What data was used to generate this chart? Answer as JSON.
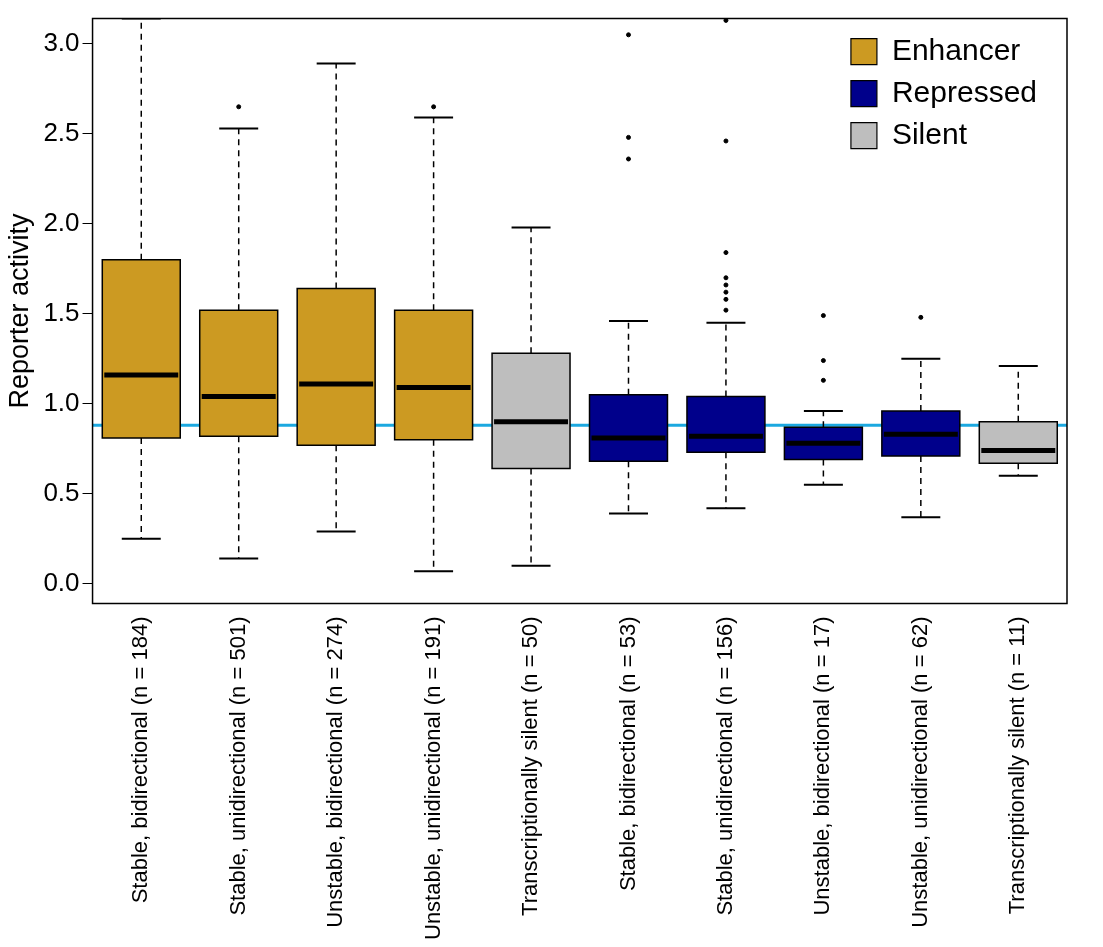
{
  "chart_data": {
    "type": "box",
    "ylabel": "Reporter activity",
    "categories": [
      "Stable, bidirectional (n = 184)",
      "Stable, unidirectional (n = 501)",
      "Unstable, bidirectional (n = 274)",
      "Unstable, unidirectional (n = 191)",
      "Transcriptionally silent (n = 50)",
      "Stable, bidirectional (n = 53)",
      "Stable, unidirectional (n = 156)",
      "Unstable, bidirectional (n = 17)",
      "Unstable, unidirectional (n = 62)",
      "Transcriptionally silent (n = 11)"
    ],
    "series": [
      {
        "name": "Enhancer",
        "color": "#cc9a22",
        "boxes": [
          {
            "low": 0.25,
            "q1": 0.81,
            "median": 1.16,
            "q3": 1.8,
            "high": 3.14
          },
          {
            "low": 0.14,
            "q1": 0.82,
            "median": 1.04,
            "q3": 1.52,
            "high": 2.53,
            "outliers": [
              2.65
            ]
          },
          {
            "low": 0.29,
            "q1": 0.77,
            "median": 1.11,
            "q3": 1.64,
            "high": 2.89
          },
          {
            "low": 0.07,
            "q1": 0.8,
            "median": 1.09,
            "q3": 1.52,
            "high": 2.59,
            "outliers": [
              2.65
            ]
          },
          null,
          null,
          null,
          null,
          null,
          null
        ]
      },
      {
        "name": "Repressed",
        "color": "#00008b",
        "boxes": [
          null,
          null,
          null,
          null,
          null,
          {
            "low": 0.39,
            "q1": 0.68,
            "median": 0.81,
            "q3": 1.05,
            "high": 1.46,
            "outliers": [
              2.36,
              2.48,
              3.05
            ]
          },
          {
            "low": 0.42,
            "q1": 0.73,
            "median": 0.82,
            "q3": 1.04,
            "high": 1.45,
            "outliers": [
              1.52,
              1.58,
              1.62,
              1.66,
              1.7,
              1.84,
              2.46,
              3.13
            ]
          },
          {
            "low": 0.55,
            "q1": 0.69,
            "median": 0.78,
            "q3": 0.87,
            "high": 0.96,
            "outliers": [
              1.13,
              1.24,
              1.49
            ]
          },
          {
            "low": 0.37,
            "q1": 0.71,
            "median": 0.83,
            "q3": 0.96,
            "high": 1.25,
            "outliers": [
              1.48
            ]
          },
          null
        ]
      },
      {
        "name": "Silent",
        "color": "#bebebe",
        "boxes": [
          null,
          null,
          null,
          null,
          {
            "low": 0.1,
            "q1": 0.64,
            "median": 0.9,
            "q3": 1.28,
            "high": 1.98
          },
          null,
          null,
          null,
          null,
          {
            "low": 0.6,
            "q1": 0.67,
            "median": 0.74,
            "q3": 0.9,
            "high": 1.21
          }
        ]
      }
    ],
    "ylim": [
      -0.11,
      3.14
    ],
    "yticks": [
      {
        "value": 0,
        "label": "0.0"
      },
      {
        "value": 0.5,
        "label": "0.5"
      },
      {
        "value": 1,
        "label": "1.0"
      },
      {
        "value": 1.5,
        "label": "1.5"
      },
      {
        "value": 2,
        "label": "2.0"
      },
      {
        "value": 2.5,
        "label": "2.5"
      },
      {
        "value": 3,
        "label": "3.0"
      }
    ],
    "ref_lines": [
      {
        "axis": "y",
        "value": 0.88,
        "color": "#1ba8e0"
      }
    ],
    "legend": "top right",
    "grid": false
  }
}
